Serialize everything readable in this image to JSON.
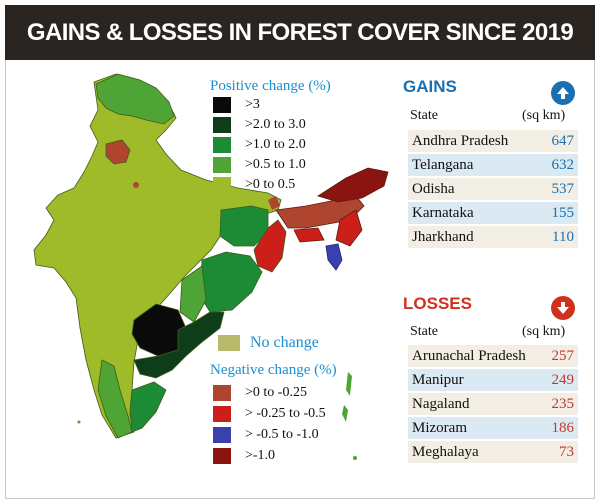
{
  "title": "GAINS & LOSSES IN FOREST COVER SINCE 2019",
  "colors": {
    "title_bg": "#2b2522",
    "positive_heading": "#1a8fd0",
    "gains_heading": "#1a6fb0",
    "losses_heading": "#d0311f",
    "gt3": "#0a0a0a",
    "p2to3": "#0f3d1a",
    "p1to2": "#1d8a36",
    "p05to1": "#4ea435",
    "p0to05": "#9fbb2a",
    "no_change": "#b8b96a",
    "n0to025": "#b0452f",
    "n025to05": "#cc1f1a",
    "n05to1": "#3b3fb0",
    "ngt1": "#8a1410"
  },
  "legend": {
    "positive_title": "Positive change (%)",
    "positive": [
      ">3",
      ">2.0 to 3.0",
      ">1.0 to 2.0",
      ">0.5 to 1.0",
      ">0 to 0.5"
    ],
    "no_change": "No change",
    "negative_title": "Negative change (%)",
    "negative": [
      ">0 to -0.25",
      "> -0.25 to -0.5",
      "> -0.5 to -1.0",
      ">-1.0"
    ]
  },
  "gains": {
    "title": "GAINS",
    "icon": "arrow-up-icon",
    "col_state": "State",
    "col_unit": "(sq km)",
    "rows": [
      {
        "state": "Andhra Pradesh",
        "value": "647"
      },
      {
        "state": "Telangana",
        "value": "632"
      },
      {
        "state": "Odisha",
        "value": "537"
      },
      {
        "state": "Karnataka",
        "value": "155"
      },
      {
        "state": "Jharkhand",
        "value": "110"
      }
    ]
  },
  "losses": {
    "title": "LOSSES",
    "icon": "arrow-down-icon",
    "col_state": "State",
    "col_unit": "(sq km)",
    "rows": [
      {
        "state": "Arunachal Pradesh",
        "value": "257"
      },
      {
        "state": "Manipur",
        "value": "249"
      },
      {
        "state": "Nagaland",
        "value": "235"
      },
      {
        "state": "Mizoram",
        "value": "186"
      },
      {
        "state": "Meghalaya",
        "value": "73"
      }
    ]
  }
}
